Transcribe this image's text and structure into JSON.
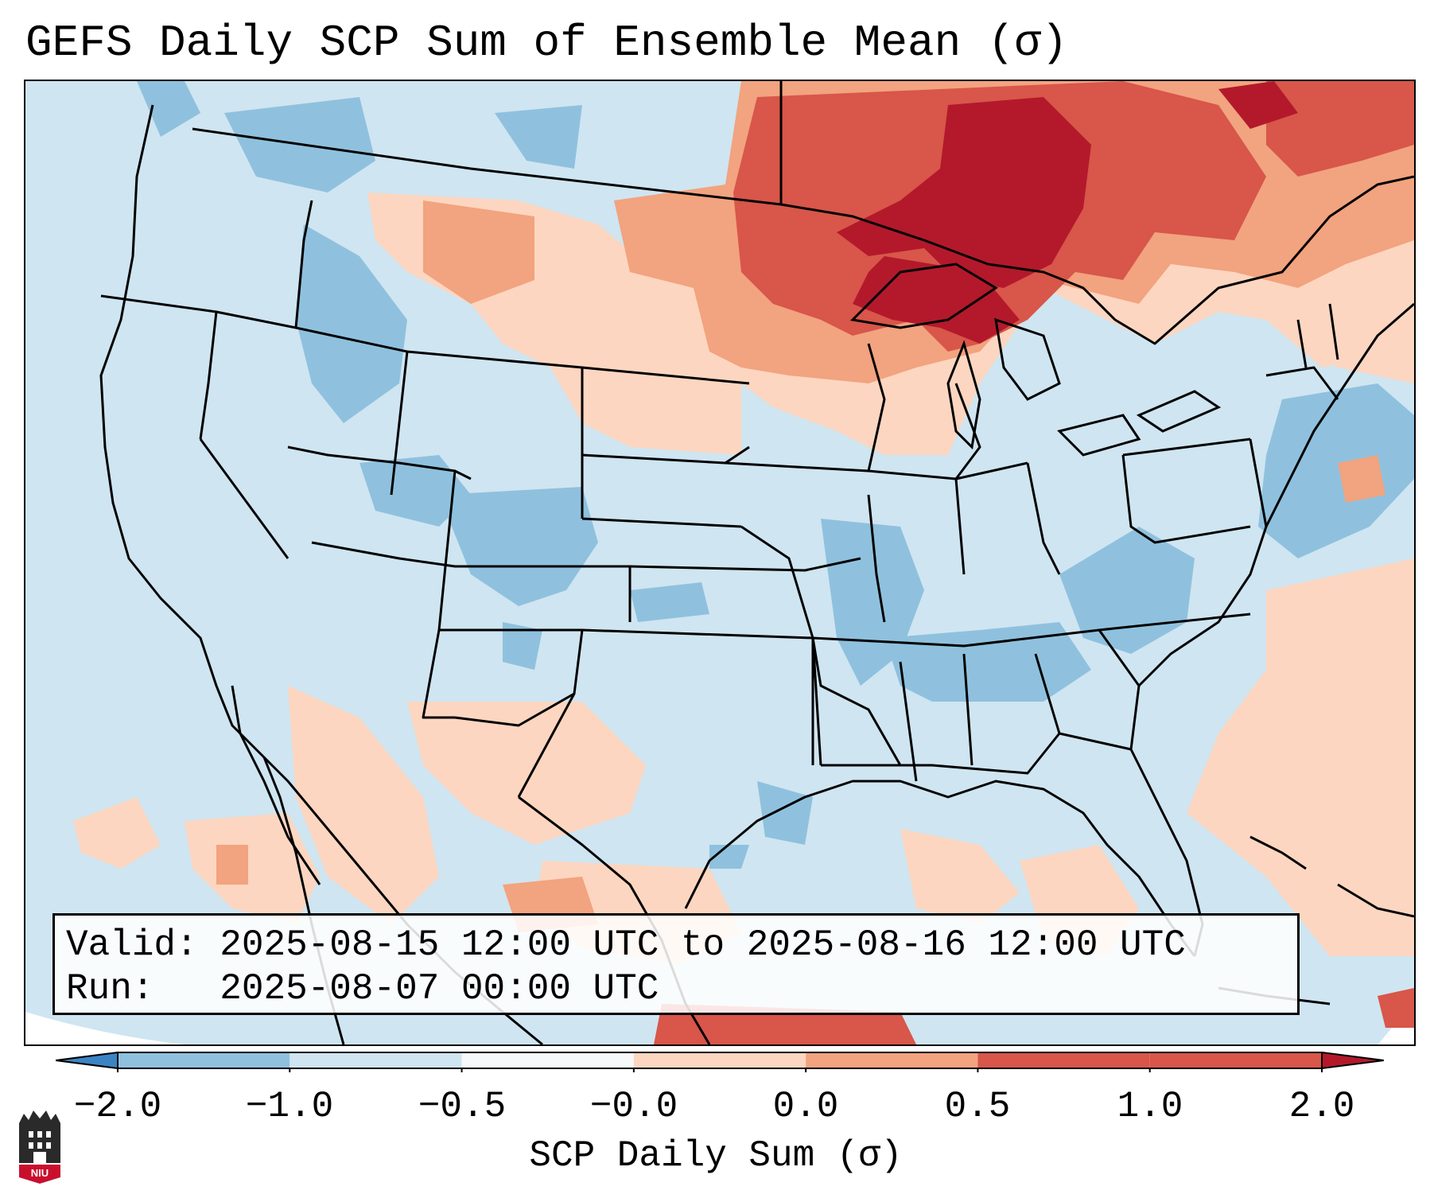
{
  "title": "GEFS Daily SCP Sum of Ensemble Mean (σ)",
  "info": {
    "valid_label": "Valid:",
    "valid_value": "2025-08-15 12:00 UTC to 2025-08-16 12:00 UTC",
    "run_label": "Run:",
    "run_value": "2025-08-07 00:00 UTC"
  },
  "colorbar": {
    "label": "SCP Daily Sum (σ)",
    "ticks": [
      "−2.0",
      "−1.0",
      "−0.5",
      "−0.0",
      "0.0",
      "0.5",
      "1.0",
      "2.0"
    ],
    "colors": [
      "#3b84c4",
      "#8fc1de",
      "#cfe5f1",
      "#f6f8fa",
      "#fcd6c0",
      "#f2a37f",
      "#d8564a",
      "#b3192b"
    ],
    "extend": "both"
  },
  "map": {
    "region": "Contiguous United States",
    "background_color": "#cfe5f1",
    "highlight_region": "Upper Midwest / Great Lakes",
    "legend_position": "bottom"
  },
  "logo": {
    "text": "NIU",
    "icon": "niu-logo-icon"
  }
}
